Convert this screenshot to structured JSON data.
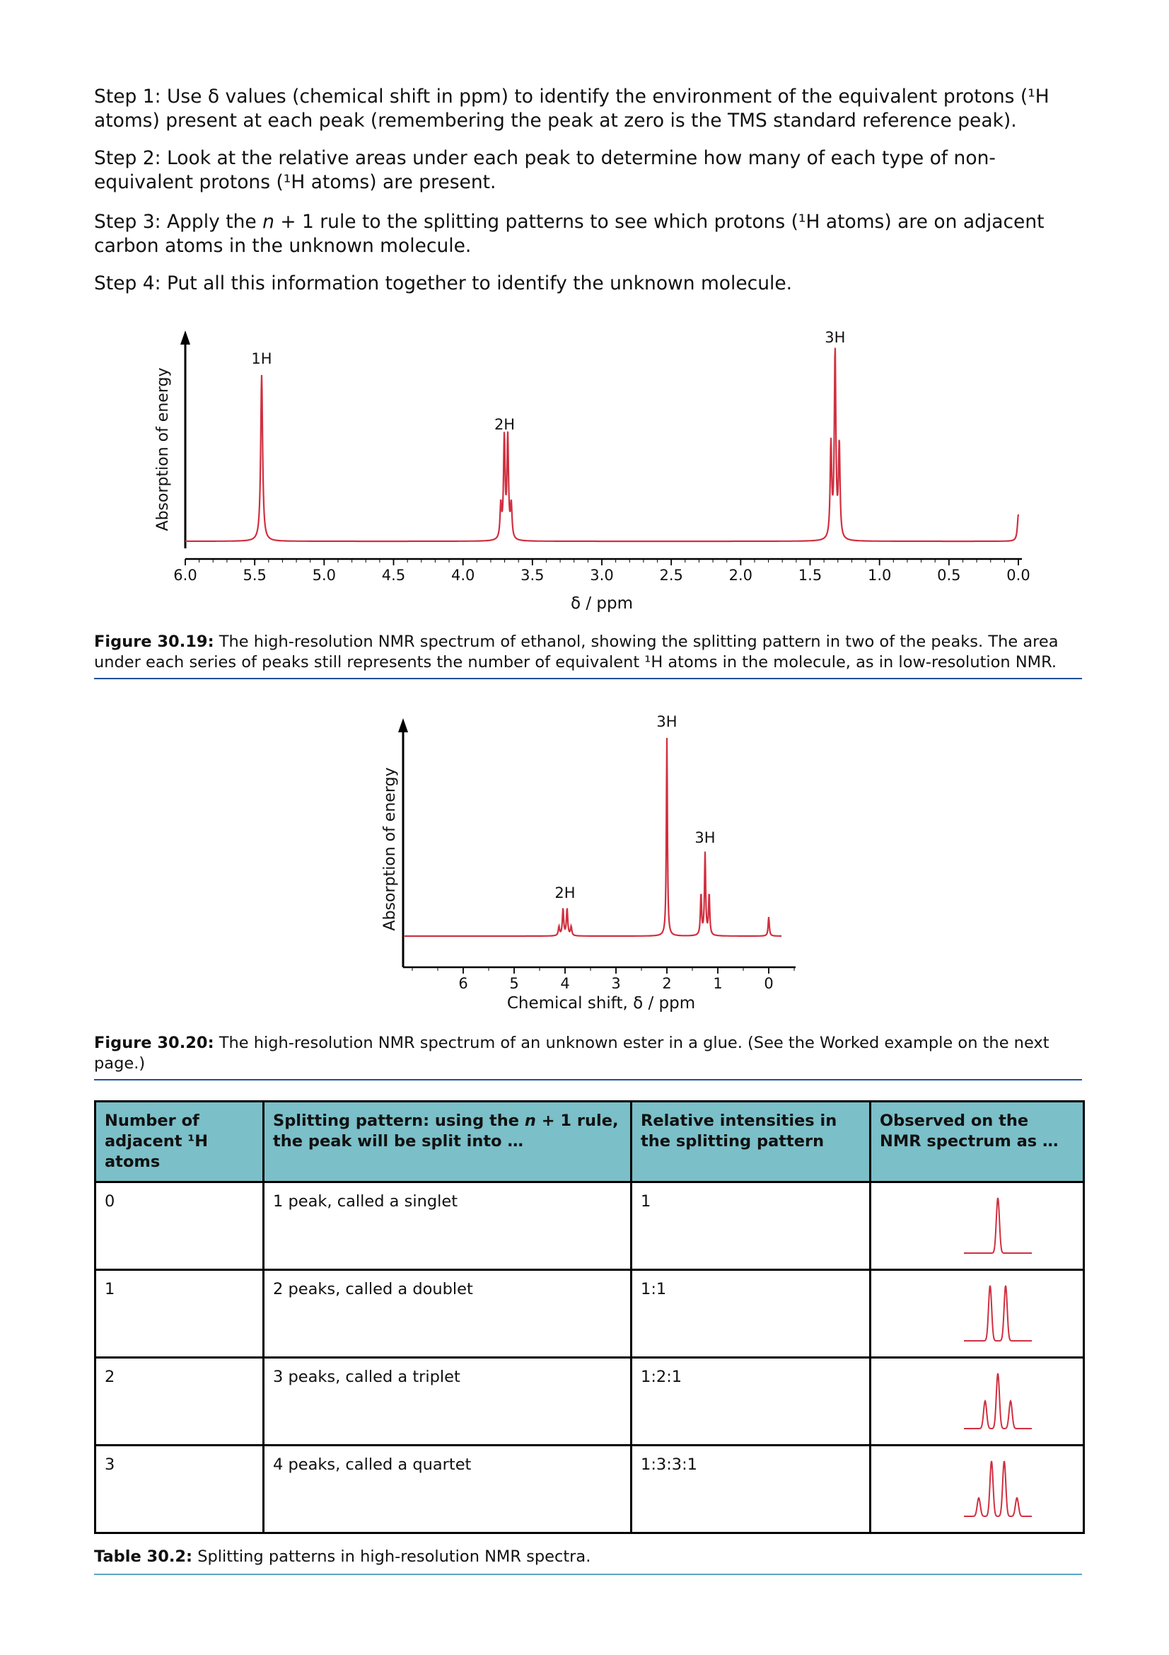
{
  "steps": {
    "step1": "Step 1: Use δ values (chemical shift in ppm) to identify the environment of the equivalent protons (¹H atoms) present at each peak (remembering the peak at zero is the TMS standard reference peak).",
    "step2": "Step 2: Look at the relative areas under each peak to determine how many of each type of non-equivalent protons (¹H atoms) are present.",
    "step3_pre": "Step 3: Apply the ",
    "step3_n": "n",
    "step3_post": " + 1 rule to the splitting patterns to see which protons (¹H atoms) are on adjacent carbon atoms in the unknown molecule.",
    "step4": "Step 4: Put all this information together to identify the unknown molecule."
  },
  "figure1": {
    "caption_label": "Figure 30.19:",
    "caption_text": " The high-resolution NMR spectrum of ethanol, showing the splitting pattern in two of the peaks. The area under each series of peaks still represents the number of equivalent ¹H atoms in the molecule, as in low-resolution NMR.",
    "chart_data": {
      "type": "line",
      "xlabel": "δ / ppm",
      "ylabel": "Absorption of energy",
      "x_ticks": [
        "6.0",
        "5.5",
        "5.0",
        "4.5",
        "4.0",
        "3.5",
        "3.0",
        "2.5",
        "2.0",
        "1.5",
        "1.0",
        "0.5",
        "0.0"
      ],
      "xlim": [
        6.0,
        0.0
      ],
      "peaks": [
        {
          "shift": 5.45,
          "label": "1H",
          "pattern": "singlet"
        },
        {
          "shift": 3.69,
          "label": "2H",
          "pattern": "quartet"
        },
        {
          "shift": 1.32,
          "label": "3H",
          "pattern": "triplet"
        },
        {
          "shift": 0.0,
          "label": "",
          "pattern": "singlet"
        }
      ],
      "line_color": "#d03040"
    }
  },
  "figure2": {
    "caption_label": "Figure 30.20:",
    "caption_text": " The high-resolution NMR spectrum of an unknown ester in a glue. (See the Worked example on the next page.)",
    "chart_data": {
      "type": "line",
      "xlabel": "Chemical shift, δ / ppm",
      "ylabel": "Absorption of energy",
      "x_ticks": [
        "6",
        "5",
        "4",
        "3",
        "2",
        "1",
        "0"
      ],
      "xlim": [
        7.0,
        -0.5
      ],
      "peaks": [
        {
          "shift": 4.0,
          "label": "2H",
          "pattern": "quartet"
        },
        {
          "shift": 2.0,
          "label": "3H",
          "pattern": "singlet"
        },
        {
          "shift": 1.25,
          "label": "3H",
          "pattern": "triplet"
        },
        {
          "shift": 0.0,
          "label": "",
          "pattern": "singlet"
        }
      ],
      "line_color": "#d03040"
    }
  },
  "table": {
    "headers": {
      "col1": "Number of adjacent ¹H atoms",
      "col2_pre": "Splitting pattern: using the ",
      "col2_n": "n",
      "col2_post": " + 1 rule, the peak will be split into …",
      "col3": "Relative intensities in the splitting pattern",
      "col4": "Observed on the NMR spectrum as …"
    },
    "rows": [
      {
        "adjacent": "0",
        "pattern": "1 peak, called a singlet",
        "intensities": "1"
      },
      {
        "adjacent": "1",
        "pattern": "2 peaks, called a doublet",
        "intensities": "1:1"
      },
      {
        "adjacent": "2",
        "pattern": "3 peaks, called a triplet",
        "intensities": "1:2:1"
      },
      {
        "adjacent": "3",
        "pattern": "4 peaks, called a quartet",
        "intensities": "1:3:3:1"
      }
    ],
    "caption_label": "Table 30.2:",
    "caption_text": " Splitting patterns in high-resolution NMR spectra."
  }
}
